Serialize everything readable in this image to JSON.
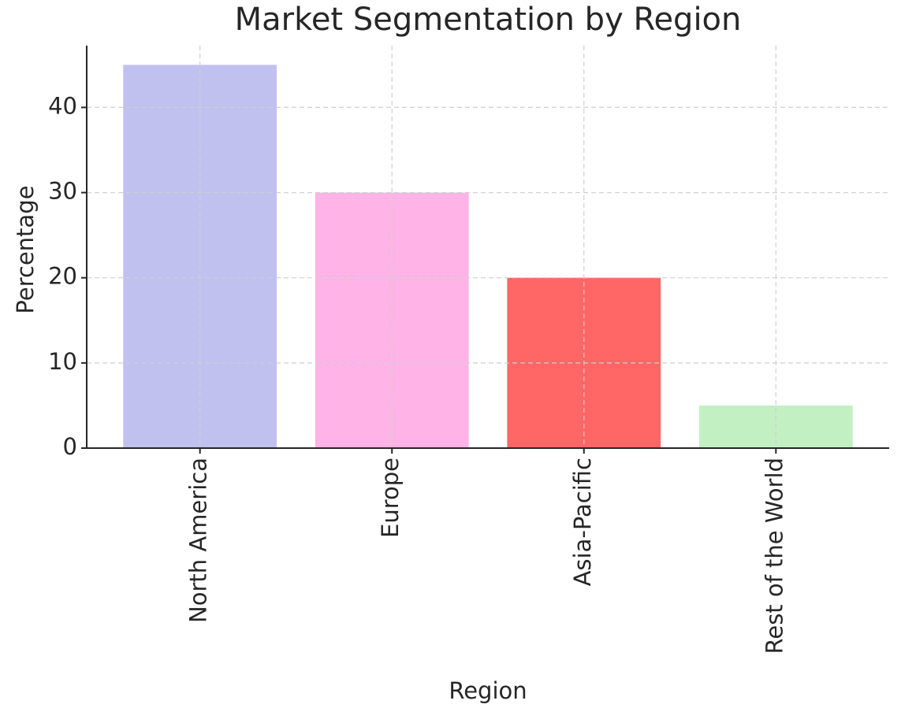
{
  "chart_data": {
    "type": "bar",
    "title": "Market Segmentation by Region",
    "xlabel": "Region",
    "ylabel": "Percentage",
    "categories": [
      "North America",
      "Europe",
      "Asia-Pacific",
      "Rest of the World"
    ],
    "values": [
      45,
      30,
      20,
      5
    ],
    "colors": [
      "#c1c1f0",
      "#ffb3e6",
      "#ff6666",
      "#c2f0c2"
    ],
    "ylim": [
      0,
      47.25
    ],
    "yticks": [
      0,
      10,
      20,
      30,
      40
    ],
    "grid": true
  }
}
